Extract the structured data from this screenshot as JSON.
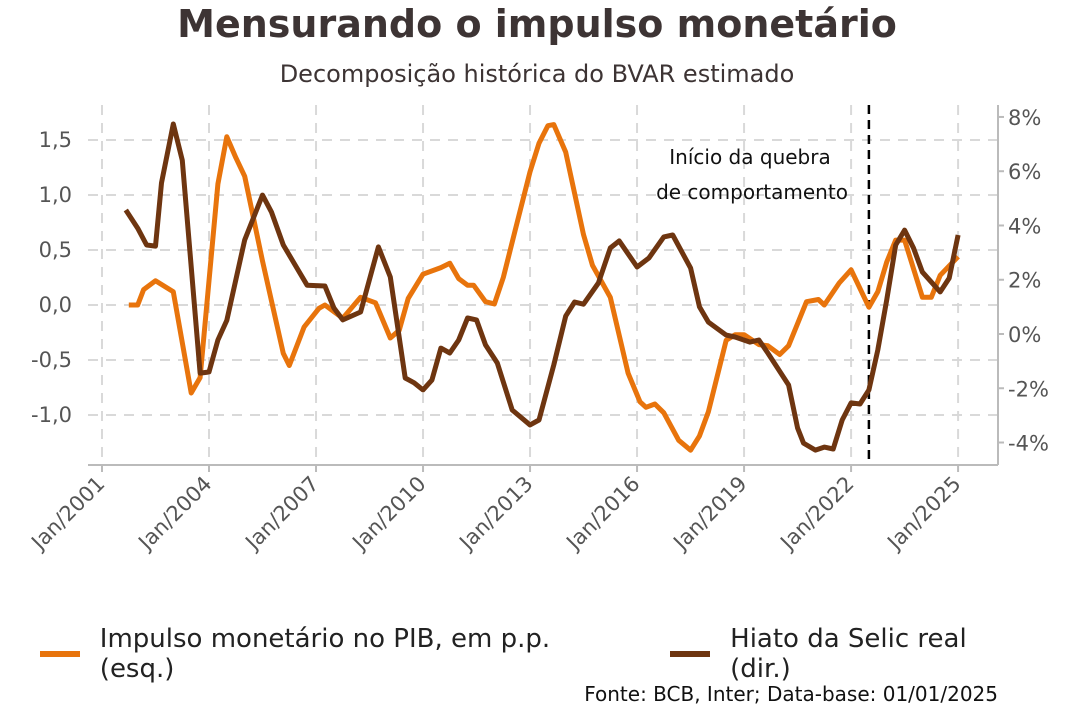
{
  "title": "Mensurando o impulso monetário",
  "subtitle": "Decomposição histórica do BVAR estimado",
  "source": "Fonte: BCB, Inter; Data-base: 01/01/2025",
  "chart_data": {
    "type": "line",
    "title": "Mensurando o impulso monetário",
    "subtitle": "Decomposição histórica do BVAR estimado",
    "x_ticks": [
      "Jan/2001",
      "Jan/2004",
      "Jan/2007",
      "Jan/2010",
      "Jan/2013",
      "Jan/2016",
      "Jan/2019",
      "Jan/2022",
      "Jan/2025"
    ],
    "xlim": [
      "2001-01",
      "2025-01"
    ],
    "y_left": {
      "ticks": [
        "1,5",
        "1,0",
        "0,5",
        "0,0",
        "-0,5",
        "-1,0"
      ],
      "tick_values": [
        1.5,
        1.0,
        0.5,
        0.0,
        -0.5,
        -1.0
      ],
      "ylim": [
        -1.45,
        1.75
      ]
    },
    "y_right": {
      "ticks": [
        "8%",
        "6%",
        "4%",
        "2%",
        "0%",
        "-2%",
        "-4%"
      ],
      "tick_values": [
        8,
        6,
        4,
        2,
        0,
        -2,
        -4
      ],
      "ylim": [
        -4.8,
        8.2
      ]
    },
    "grid": true,
    "legend_position": "bottom",
    "annotation": {
      "text_line1": "Início da quebra",
      "text_line2": "de comportamento",
      "x": "2022-07",
      "style": "dashed vertical line"
    },
    "series": [
      {
        "name": "Impulso monetário no PIB, em p.p. (esq.)",
        "axis": "left",
        "color": "#e8740c",
        "points": [
          [
            "2001-10",
            0.0
          ],
          [
            "2002-01",
            0.0
          ],
          [
            "2002-03",
            0.14
          ],
          [
            "2002-07",
            0.22
          ],
          [
            "2003-01",
            0.12
          ],
          [
            "2003-07",
            -0.8
          ],
          [
            "2003-10",
            -0.66
          ],
          [
            "2004-04",
            1.1
          ],
          [
            "2004-07",
            1.53
          ],
          [
            "2004-10",
            1.34
          ],
          [
            "2005-01",
            1.17
          ],
          [
            "2005-07",
            0.4
          ],
          [
            "2006-02",
            -0.44
          ],
          [
            "2006-04",
            -0.55
          ],
          [
            "2006-09",
            -0.2
          ],
          [
            "2007-02",
            -0.03
          ],
          [
            "2007-04",
            0.0
          ],
          [
            "2007-10",
            -0.12
          ],
          [
            "2008-04",
            0.07
          ],
          [
            "2008-09",
            0.02
          ],
          [
            "2009-02",
            -0.3
          ],
          [
            "2009-05",
            -0.23
          ],
          [
            "2009-08",
            0.06
          ],
          [
            "2010-01",
            0.28
          ],
          [
            "2010-07",
            0.34
          ],
          [
            "2010-10",
            0.38
          ],
          [
            "2011-01",
            0.24
          ],
          [
            "2011-04",
            0.18
          ],
          [
            "2011-06",
            0.18
          ],
          [
            "2011-10",
            0.03
          ],
          [
            "2012-01",
            0.01
          ],
          [
            "2012-04",
            0.25
          ],
          [
            "2012-08",
            0.68
          ],
          [
            "2013-01",
            1.21
          ],
          [
            "2013-04",
            1.47
          ],
          [
            "2013-07",
            1.63
          ],
          [
            "2013-09",
            1.64
          ],
          [
            "2014-01",
            1.39
          ],
          [
            "2014-07",
            0.64
          ],
          [
            "2014-10",
            0.36
          ],
          [
            "2015-04",
            0.07
          ],
          [
            "2015-10",
            -0.62
          ],
          [
            "2016-02",
            -0.88
          ],
          [
            "2016-04",
            -0.93
          ],
          [
            "2016-07",
            -0.9
          ],
          [
            "2016-10",
            -0.98
          ],
          [
            "2017-03",
            -1.23
          ],
          [
            "2017-07",
            -1.32
          ],
          [
            "2017-10",
            -1.19
          ],
          [
            "2018-01",
            -0.97
          ],
          [
            "2018-07",
            -0.32
          ],
          [
            "2018-10",
            -0.27
          ],
          [
            "2019-01",
            -0.27
          ],
          [
            "2019-06",
            -0.36
          ],
          [
            "2019-09",
            -0.37
          ],
          [
            "2020-01",
            -0.45
          ],
          [
            "2020-04",
            -0.37
          ],
          [
            "2020-10",
            0.03
          ],
          [
            "2021-02",
            0.05
          ],
          [
            "2021-04",
            0.0
          ],
          [
            "2021-09",
            0.2
          ],
          [
            "2022-01",
            0.32
          ],
          [
            "2022-07",
            -0.02
          ],
          [
            "2022-10",
            0.12
          ],
          [
            "2023-01",
            0.39
          ],
          [
            "2023-04",
            0.59
          ],
          [
            "2023-07",
            0.59
          ],
          [
            "2024-01",
            0.07
          ],
          [
            "2024-04",
            0.07
          ],
          [
            "2024-07",
            0.27
          ],
          [
            "2025-01",
            0.44
          ]
        ]
      },
      {
        "name": "Hiato da Selic real (dir.)",
        "axis": "right",
        "color": "#6e3510",
        "points": [
          [
            "2001-09",
            4.57
          ],
          [
            "2002-01",
            3.9
          ],
          [
            "2002-04",
            3.28
          ],
          [
            "2002-07",
            3.24
          ],
          [
            "2002-09",
            5.57
          ],
          [
            "2003-01",
            7.74
          ],
          [
            "2003-04",
            6.4
          ],
          [
            "2003-10",
            -1.44
          ],
          [
            "2004-01",
            -1.4
          ],
          [
            "2004-04",
            -0.22
          ],
          [
            "2004-07",
            0.5
          ],
          [
            "2005-01",
            3.47
          ],
          [
            "2005-07",
            5.12
          ],
          [
            "2005-10",
            4.5
          ],
          [
            "2006-02",
            3.28
          ],
          [
            "2006-06",
            2.54
          ],
          [
            "2006-10",
            1.8
          ],
          [
            "2007-04",
            1.77
          ],
          [
            "2007-07",
            0.96
          ],
          [
            "2007-10",
            0.52
          ],
          [
            "2008-04",
            0.81
          ],
          [
            "2008-10",
            3.21
          ],
          [
            "2009-02",
            2.1
          ],
          [
            "2009-07",
            -1.62
          ],
          [
            "2009-10",
            -1.8
          ],
          [
            "2010-01",
            -2.06
          ],
          [
            "2010-04",
            -1.7
          ],
          [
            "2010-07",
            -0.52
          ],
          [
            "2010-10",
            -0.7
          ],
          [
            "2011-01",
            -0.22
          ],
          [
            "2011-04",
            0.59
          ],
          [
            "2011-07",
            0.52
          ],
          [
            "2011-10",
            -0.4
          ],
          [
            "2012-02",
            -1.07
          ],
          [
            "2012-07",
            -2.8
          ],
          [
            "2013-01",
            -3.35
          ],
          [
            "2013-04",
            -3.17
          ],
          [
            "2013-09",
            -1.14
          ],
          [
            "2014-01",
            0.66
          ],
          [
            "2014-04",
            1.18
          ],
          [
            "2014-07",
            1.1
          ],
          [
            "2014-12",
            1.88
          ],
          [
            "2015-04",
            3.17
          ],
          [
            "2015-07",
            3.43
          ],
          [
            "2016-01",
            2.47
          ],
          [
            "2016-05",
            2.8
          ],
          [
            "2016-10",
            3.58
          ],
          [
            "2017-01",
            3.65
          ],
          [
            "2017-07",
            2.43
          ],
          [
            "2017-10",
            1.0
          ],
          [
            "2018-01",
            0.44
          ],
          [
            "2018-07",
            -0.04
          ],
          [
            "2018-10",
            -0.11
          ],
          [
            "2019-03",
            -0.3
          ],
          [
            "2019-06",
            -0.22
          ],
          [
            "2019-09",
            -0.7
          ],
          [
            "2020-04",
            -1.88
          ],
          [
            "2020-07",
            -3.47
          ],
          [
            "2020-09",
            -4.02
          ],
          [
            "2021-01",
            -4.28
          ],
          [
            "2021-04",
            -4.17
          ],
          [
            "2021-07",
            -4.24
          ],
          [
            "2021-10",
            -3.17
          ],
          [
            "2022-01",
            -2.54
          ],
          [
            "2022-04",
            -2.58
          ],
          [
            "2022-07",
            -2.06
          ],
          [
            "2022-10",
            -0.59
          ],
          [
            "2023-01",
            1.25
          ],
          [
            "2023-04",
            3.28
          ],
          [
            "2023-07",
            3.83
          ],
          [
            "2023-10",
            3.17
          ],
          [
            "2024-01",
            2.28
          ],
          [
            "2024-07",
            1.55
          ],
          [
            "2024-10",
            2.06
          ],
          [
            "2025-01",
            3.65
          ]
        ]
      }
    ]
  }
}
